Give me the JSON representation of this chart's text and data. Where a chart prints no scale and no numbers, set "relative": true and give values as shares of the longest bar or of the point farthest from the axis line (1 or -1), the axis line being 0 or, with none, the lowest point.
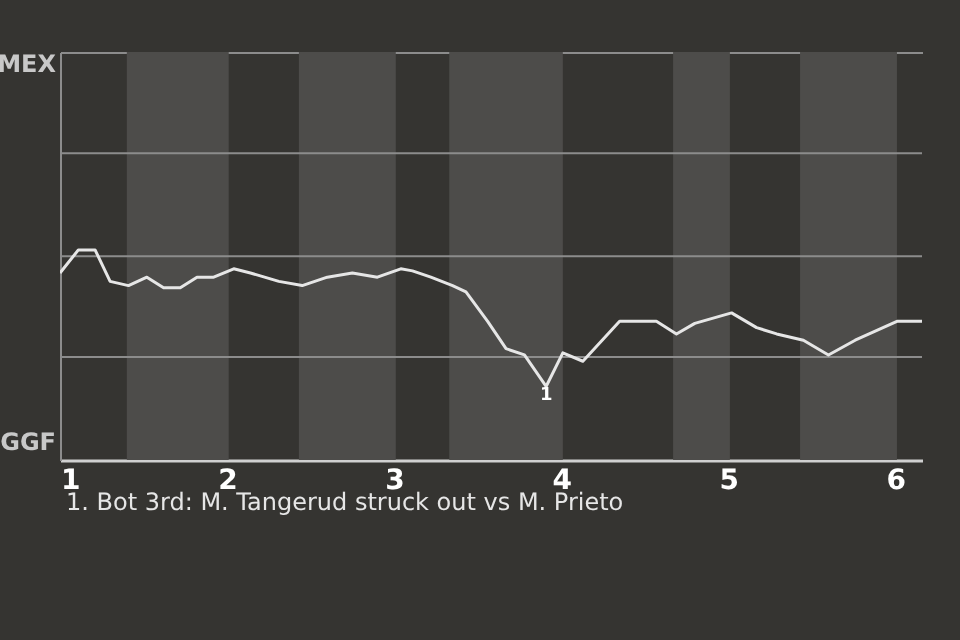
{
  "chart_data": {
    "type": "line",
    "relative": true,
    "x": [
      1.0,
      1.11,
      1.21,
      1.3,
      1.41,
      1.52,
      1.62,
      1.72,
      1.82,
      1.92,
      2.04,
      2.14,
      2.31,
      2.45,
      2.6,
      2.75,
      2.9,
      3.04,
      3.11,
      3.22,
      3.35,
      3.43,
      3.56,
      3.67,
      3.78,
      3.91,
      4.01,
      4.13,
      4.35,
      4.57,
      4.69,
      4.8,
      5.02,
      5.17,
      5.29,
      5.45,
      5.6,
      5.76,
      6.01,
      6.16
    ],
    "series": [
      {
        "color": "#e6e6e6",
        "values": [
          0.89,
          1,
          1,
          0.85,
          0.83,
          0.87,
          0.82,
          0.82,
          0.87,
          0.87,
          0.91,
          0.89,
          0.85,
          0.83,
          0.87,
          0.89,
          0.87,
          0.91,
          0.9,
          0.87,
          0.83,
          0.8,
          0.66,
          0.53,
          0.5,
          0.35,
          0.51,
          0.47,
          0.66,
          0.66,
          0.6,
          0.65,
          0.7,
          0.63,
          0.6,
          0.57,
          0.5,
          0.57,
          0.66,
          0.66
        ]
      }
    ],
    "xlim": [
      1,
      6.16
    ],
    "xticks": [
      1,
      2,
      3,
      4,
      5,
      6
    ],
    "ref_lines": [
      {
        "axis": "y",
        "value": 0.49,
        "label": null,
        "color": "#8c8c8c"
      },
      {
        "axis": "y",
        "value": 0.97,
        "label": null,
        "color": "#8c8c8c"
      },
      {
        "axis": "y",
        "value": 1.46,
        "label": null,
        "color": "#8c8c8c"
      }
    ],
    "line_style": "solid",
    "bands": [
      {
        "axis": "x",
        "from": 1.4,
        "to": 2.01,
        "color": "#4d4c4a"
      },
      {
        "axis": "x",
        "from": 2.43,
        "to": 3.01,
        "color": "#4d4c4a"
      },
      {
        "axis": "x",
        "from": 3.33,
        "to": 4.01,
        "color": "#4d4c4a"
      },
      {
        "axis": "x",
        "from": 4.67,
        "to": 5.01,
        "color": "#4d4c4a"
      },
      {
        "axis": "x",
        "from": 5.43,
        "to": 6.01,
        "color": "#4d4c4a"
      }
    ],
    "annotations": [
      "MEX",
      "GGF",
      {
        "text": "1",
        "x": 3.91,
        "y": 0.35
      },
      "1. Bot 3rd: M. Tangerud struck out vs M. Prieto"
    ]
  }
}
